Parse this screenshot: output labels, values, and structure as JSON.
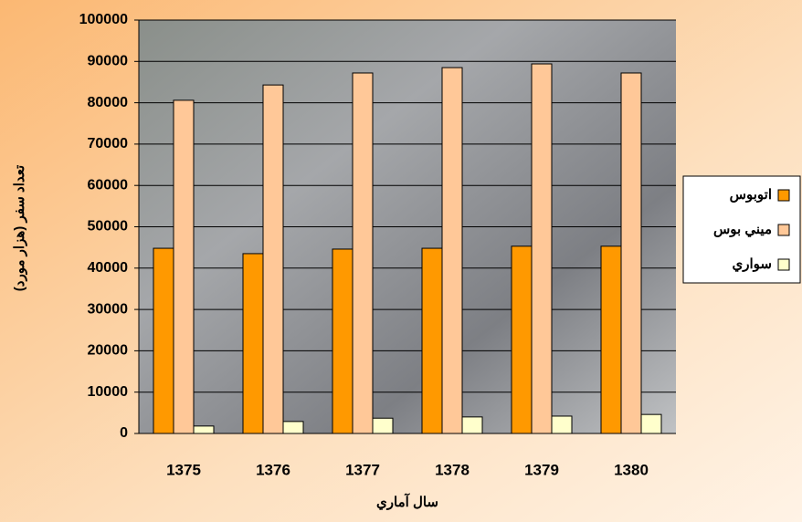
{
  "chart_data": {
    "type": "bar",
    "y_label": "تعداد سفر (هزار مورد)",
    "x_label": "سال آماري",
    "categories": [
      "1375",
      "1376",
      "1377",
      "1378",
      "1379",
      "1380"
    ],
    "series": [
      {
        "name": "اتوبوس",
        "color": "#ff9900",
        "values": [
          44800,
          43500,
          44600,
          44800,
          45300,
          45300
        ]
      },
      {
        "name": "ميني بوس",
        "color": "#ffc898",
        "values": [
          80600,
          84300,
          87200,
          88500,
          89400,
          87200
        ]
      },
      {
        "name": "سواري",
        "color": "#ffffcc",
        "values": [
          1800,
          2900,
          3700,
          4000,
          4200,
          4600
        ]
      }
    ],
    "ylim": [
      0,
      100000
    ],
    "yticks": [
      0,
      10000,
      20000,
      30000,
      40000,
      50000,
      60000,
      70000,
      80000,
      90000,
      100000
    ],
    "grid": true,
    "legend": "right"
  }
}
